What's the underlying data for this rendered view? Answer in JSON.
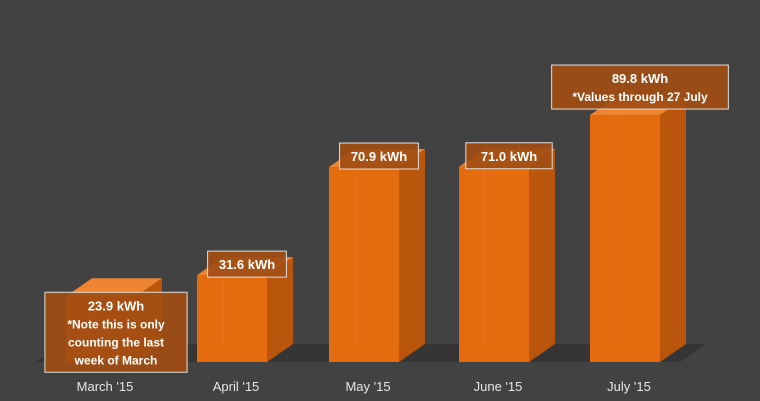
{
  "chart_data": {
    "type": "bar",
    "style": "3d-columns",
    "categories": [
      "March '15",
      "April '15",
      "May '15",
      "June '15",
      "July '15"
    ],
    "values": [
      23.9,
      31.6,
      70.9,
      71.0,
      89.8
    ],
    "unit": "kWh",
    "title": "",
    "xlabel": "",
    "ylabel": "",
    "ylim": [
      0,
      100
    ],
    "grid": false,
    "legend": "none",
    "data_labels": [
      [
        "23.9 kWh",
        "*Note this is only",
        "counting the last",
        "week of March"
      ],
      [
        "31.6 kWh"
      ],
      [
        "70.9 kWh"
      ],
      [
        "71.0  kWh"
      ],
      [
        "89.8  kWh",
        "*Values through 27 July"
      ]
    ],
    "colors": {
      "background": "#424242",
      "floor": "#353535",
      "bar_front": "#e56b0f",
      "bar_side": "#b9560b",
      "bar_top": "#ef8430",
      "label_box": "#a24d12",
      "label_border": "#e0e0e0",
      "label_text": "#ffffff",
      "tick_text": "#e6e6e6"
    }
  }
}
